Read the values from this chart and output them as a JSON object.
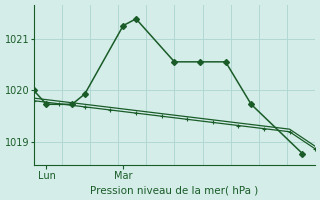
{
  "bg_color": "#d4ede9",
  "grid_color": "#b0d8d2",
  "line_color": "#1a5c28",
  "text_color": "#1a5c28",
  "title": "Pression niveau de la mer( hPa )",
  "xlabel_lun": "Lun",
  "xlabel_mar": "Mar",
  "yticks": [
    1019,
    1020,
    1021
  ],
  "ylim": [
    1018.55,
    1021.65
  ],
  "xlim": [
    0.0,
    11.0
  ],
  "lun_x": 0.5,
  "mar_x": 3.5,
  "main_x": [
    0.0,
    0.5,
    1.5,
    2.0,
    3.5,
    4.0,
    5.5,
    6.5,
    7.5,
    8.5,
    10.5
  ],
  "main_y": [
    1020.0,
    1019.73,
    1019.73,
    1019.93,
    1021.25,
    1021.38,
    1020.55,
    1020.55,
    1020.55,
    1019.73,
    1018.78
  ],
  "trend_x": [
    0.0,
    1.0,
    2.0,
    3.0,
    4.0,
    5.0,
    6.0,
    7.0,
    8.0,
    9.0,
    10.0,
    11.0
  ],
  "trend_y1": [
    1019.8,
    1019.74,
    1019.68,
    1019.62,
    1019.56,
    1019.5,
    1019.44,
    1019.38,
    1019.32,
    1019.26,
    1019.2,
    1018.87
  ],
  "trend_y2": [
    1019.85,
    1019.79,
    1019.73,
    1019.67,
    1019.61,
    1019.55,
    1019.49,
    1019.43,
    1019.37,
    1019.31,
    1019.25,
    1018.92
  ],
  "n_vgrid": 10,
  "n_hgrid": 3
}
